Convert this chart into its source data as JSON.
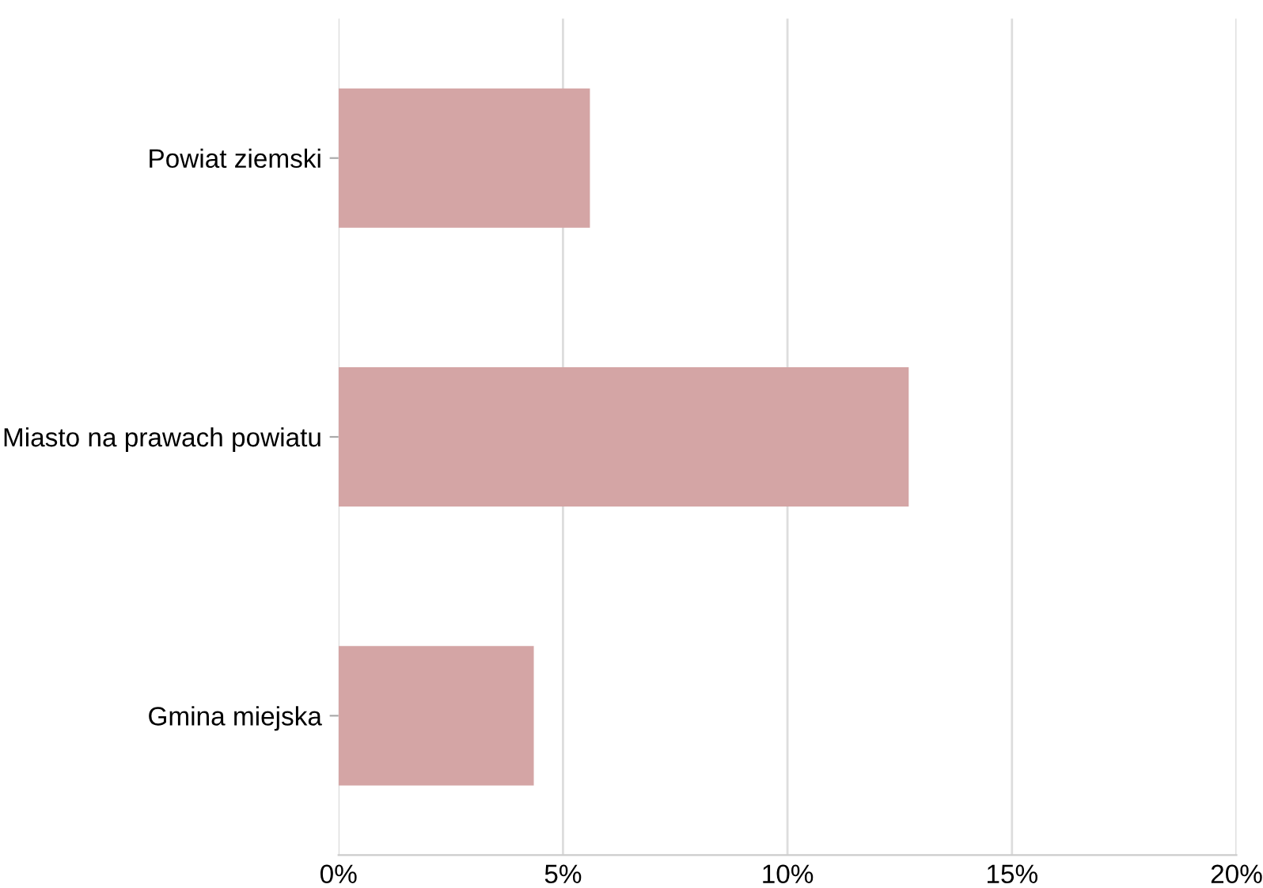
{
  "chart_data": {
    "type": "bar",
    "orientation": "horizontal",
    "categories": [
      "Powiat ziemski",
      "Miasto na prawach powiatu",
      "Gmina miejska"
    ],
    "values": [
      5.6,
      12.7,
      4.35
    ],
    "color": "#d4a5a5",
    "xlim": [
      0,
      20
    ],
    "xticks": [
      {
        "value": 0,
        "label": "0%"
      },
      {
        "value": 5,
        "label": "5%"
      },
      {
        "value": 10,
        "label": "10%"
      },
      {
        "value": 15,
        "label": "15%"
      },
      {
        "value": 20,
        "label": "20%"
      }
    ],
    "grid": "x",
    "legend": false
  }
}
